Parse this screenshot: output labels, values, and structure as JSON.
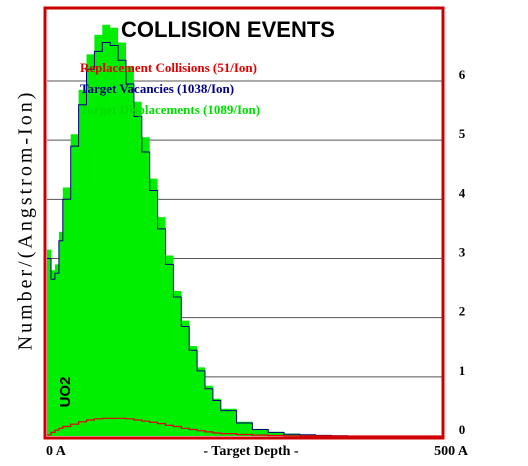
{
  "chart_data": {
    "type": "area",
    "title": "COLLISION EVENTS",
    "ylabel": "Number/(Angstrom-Ion)",
    "xlabel": "- Target Depth -",
    "x_start_label": "0 A",
    "x_end_label": "500 A",
    "target_label": "UO2",
    "xlim": [
      0,
      500
    ],
    "ylim": [
      0,
      7.2
    ],
    "yticks": [
      0,
      1,
      2,
      3,
      4,
      5,
      6
    ],
    "legend_position": "top-left",
    "grid": "horizontal",
    "x": [
      0,
      5,
      10,
      15,
      20,
      30,
      40,
      50,
      60,
      70,
      80,
      90,
      100,
      110,
      120,
      130,
      140,
      150,
      160,
      170,
      180,
      190,
      200,
      210,
      220,
      240,
      260,
      280,
      300,
      320,
      340,
      360,
      380,
      400,
      450,
      500
    ],
    "series": [
      {
        "name": "Replacement Collisions (51/Ion)",
        "color": "#e00000",
        "values": [
          0.02,
          0.06,
          0.1,
          0.13,
          0.16,
          0.2,
          0.24,
          0.27,
          0.29,
          0.3,
          0.3,
          0.3,
          0.29,
          0.27,
          0.25,
          0.23,
          0.21,
          0.18,
          0.16,
          0.13,
          0.11,
          0.09,
          0.07,
          0.05,
          0.04,
          0.025,
          0.015,
          0.008,
          0.004,
          0.002,
          0.001,
          0,
          0,
          0,
          0,
          0
        ]
      },
      {
        "name": "Target Vacancies (1038/Ion)",
        "color": "#000080",
        "values": [
          3.0,
          2.65,
          2.75,
          3.3,
          4.0,
          4.9,
          5.6,
          6.2,
          6.5,
          6.65,
          6.6,
          6.35,
          5.95,
          5.4,
          4.8,
          4.15,
          3.5,
          2.9,
          2.35,
          1.85,
          1.45,
          1.1,
          0.8,
          0.6,
          0.43,
          0.22,
          0.11,
          0.06,
          0.03,
          0.02,
          0.01,
          0.005,
          0,
          0,
          0,
          0
        ]
      },
      {
        "name": "Target Displacements (1089/Ion)",
        "color": "#00ee00",
        "values": [
          3.15,
          2.8,
          2.9,
          3.45,
          4.2,
          5.1,
          5.85,
          6.45,
          6.78,
          6.95,
          6.9,
          6.65,
          6.25,
          5.65,
          5.05,
          4.35,
          3.7,
          3.05,
          2.45,
          1.95,
          1.52,
          1.16,
          0.85,
          0.63,
          0.46,
          0.24,
          0.12,
          0.07,
          0.04,
          0.025,
          0.015,
          0.008,
          0.004,
          0.002,
          0,
          0
        ]
      }
    ]
  }
}
